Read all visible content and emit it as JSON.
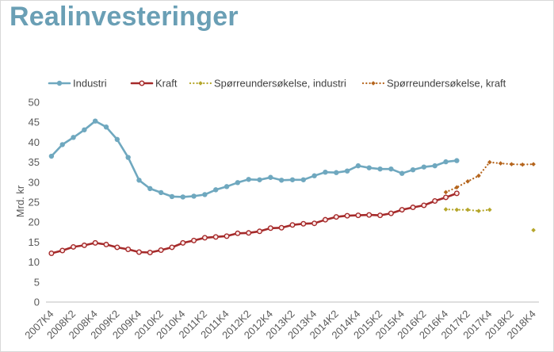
{
  "header": {
    "title": "Realinvesteringer"
  },
  "chart_data": {
    "type": "line",
    "title": "Realinvesteringer",
    "ylabel": "Mrd. kr",
    "xlabel": "",
    "ylim": [
      0,
      50
    ],
    "yticks": [
      0,
      5,
      10,
      15,
      20,
      25,
      30,
      35,
      40,
      45,
      50
    ],
    "grid": false,
    "legend_position": "top",
    "categories": [
      "2007K4",
      "2008K1",
      "2008K2",
      "2008K3",
      "2008K4",
      "2009K1",
      "2009K2",
      "2009K3",
      "2009K4",
      "2010K1",
      "2010K2",
      "2010K3",
      "2010K4",
      "2011K1",
      "2011K2",
      "2011K3",
      "2011K4",
      "2012K1",
      "2012K2",
      "2012K3",
      "2012K4",
      "2013K1",
      "2013K2",
      "2013K3",
      "2013K4",
      "2014K1",
      "2014K2",
      "2014K3",
      "2014K4",
      "2015K1",
      "2015K2",
      "2015K3",
      "2015K4",
      "2016K1",
      "2016K2",
      "2016K3",
      "2016K4",
      "2017K1",
      "2017K2",
      "2017K3",
      "2017K4",
      "2018K1",
      "2018K2",
      "2018K3",
      "2018K4"
    ],
    "tick_labels": [
      "2007K4",
      "2008K2",
      "2008K4",
      "2009K2",
      "2009K4",
      "2010K2",
      "2010K4",
      "2011K2",
      "2011K4",
      "2012K2",
      "2012K4",
      "2013K2",
      "2013K4",
      "2014K2",
      "2014K4",
      "2015K2",
      "2015K4",
      "2016K2",
      "2016K4",
      "2017K2",
      "2017K4",
      "2018K2",
      "2018K4"
    ],
    "series": [
      {
        "name": "Industri",
        "color": "#6fa8bf",
        "style": "solid",
        "values": [
          36.5,
          39.4,
          41.2,
          43.1,
          45.3,
          43.8,
          40.7,
          36.2,
          30.5,
          28.4,
          27.4,
          26.4,
          26.3,
          26.5,
          26.9,
          28.1,
          28.9,
          29.9,
          30.7,
          30.6,
          31.2,
          30.5,
          30.6,
          30.6,
          31.6,
          32.5,
          32.4,
          32.8,
          34.1,
          33.6,
          33.3,
          33.3,
          32.2,
          33.1,
          33.8,
          34.1,
          35.1,
          35.4,
          null,
          null,
          null,
          null,
          null,
          null,
          null
        ]
      },
      {
        "name": "Kraft",
        "color": "#a52a2a",
        "style": "solid",
        "values": [
          12.2,
          12.9,
          13.8,
          14.2,
          14.8,
          14.4,
          13.7,
          13.2,
          12.5,
          12.4,
          13.0,
          13.7,
          14.8,
          15.4,
          16.1,
          16.3,
          16.5,
          17.2,
          17.3,
          17.7,
          18.5,
          18.6,
          19.3,
          19.6,
          19.7,
          20.6,
          21.3,
          21.6,
          21.7,
          21.8,
          21.7,
          22.2,
          23.1,
          23.7,
          24.2,
          25.3,
          26.2,
          27.2,
          null,
          null,
          null,
          null,
          null,
          null,
          null
        ]
      },
      {
        "name": "Spørreundersøkelse, industri",
        "color": "#b5a62a",
        "style": "dotted",
        "values": [
          null,
          null,
          null,
          null,
          null,
          null,
          null,
          null,
          null,
          null,
          null,
          null,
          null,
          null,
          null,
          null,
          null,
          null,
          null,
          null,
          null,
          null,
          null,
          null,
          null,
          null,
          null,
          null,
          null,
          null,
          null,
          null,
          null,
          null,
          null,
          null,
          23.2,
          23.1,
          23.1,
          22.8,
          23.1,
          null,
          null,
          null,
          18.0
        ]
      },
      {
        "name": "Spørreundersøkelse, kraft",
        "color": "#b5651d",
        "style": "dotted",
        "values": [
          null,
          null,
          null,
          null,
          null,
          null,
          null,
          null,
          null,
          null,
          null,
          null,
          null,
          null,
          null,
          null,
          null,
          null,
          null,
          null,
          null,
          null,
          null,
          null,
          null,
          null,
          null,
          null,
          null,
          null,
          null,
          null,
          null,
          null,
          null,
          null,
          27.5,
          28.7,
          30.2,
          31.6,
          35.0,
          34.7,
          34.5,
          34.4,
          34.5
        ]
      }
    ]
  }
}
